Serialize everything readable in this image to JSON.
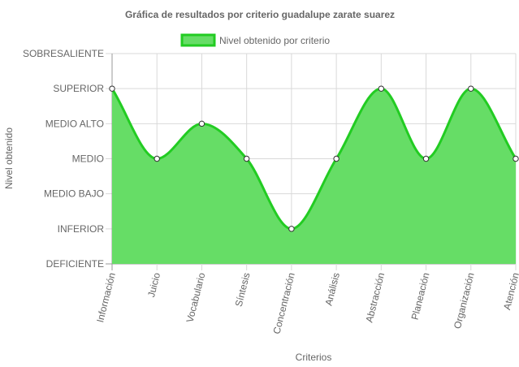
{
  "chart_data": {
    "type": "area",
    "title": "Gráfica de resultados por criterio guadalupe zarate suarez",
    "xlabel": "Criterios",
    "ylabel": "Nivel obtenido",
    "categories": [
      "Información",
      "Juicio",
      "Vocabulario",
      "Síntesis",
      "Concentración",
      "Análisis",
      "Abstracción",
      "Planeación",
      "Organización",
      "Atención"
    ],
    "y_levels": [
      "DEFICIENTE",
      "INFERIOR",
      "MEDIO BAJO",
      "MEDIO",
      "MEDIO ALTO",
      "SUPERIOR",
      "SOBRESALIENTE"
    ],
    "series": [
      {
        "name": "Nivel obtenido por criterio",
        "values": [
          5,
          3,
          4,
          3,
          1,
          3,
          5,
          3,
          5,
          3
        ]
      }
    ],
    "ylim": [
      0,
      6
    ],
    "grid": true,
    "legend_position": "top",
    "colors": {
      "fill": "#66dd66",
      "line": "#22cc22",
      "point_fill": "#ffffff",
      "point_stroke": "#333333",
      "grid": "#d9d9d9",
      "axis": "#999999"
    }
  }
}
